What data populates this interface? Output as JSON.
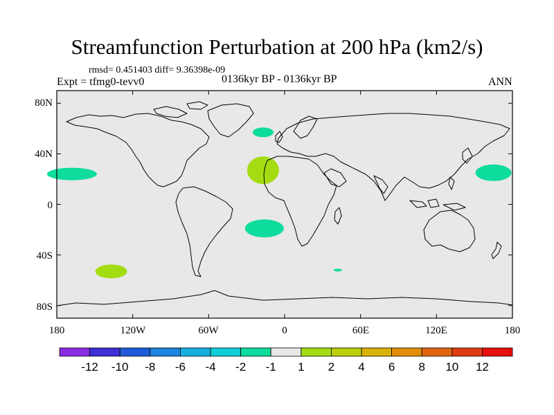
{
  "header": {
    "title": "Streamfunction Perturbation at 200 hPa (km2/s)",
    "stats": "rmsd= 0.451403 diff= 9.36398e-09",
    "experiment": "Expt = tfmg0-tevv0",
    "period": "0136kyr BP - 0136kyr BP",
    "season": "ANN"
  },
  "axes": {
    "y_ticks": [
      "80N",
      "40N",
      "0",
      "40S",
      "80S"
    ],
    "x_ticks": [
      "180",
      "120W",
      "60W",
      "0",
      "60E",
      "120E",
      "180"
    ]
  },
  "colorbar": {
    "colors": [
      "#8a2be2",
      "#3f2fd6",
      "#1f5ad8",
      "#1d84e0",
      "#17aee0",
      "#12ccd8",
      "#0ddc9c",
      "#e8e8e8",
      "#a4dc12",
      "#bccf0a",
      "#d9b20a",
      "#e28f07",
      "#e06410",
      "#e03a12",
      "#e80e0e"
    ],
    "labels": [
      "-12",
      "-10",
      "-8",
      "-6",
      "-4",
      "-2",
      "-1",
      "1",
      "2",
      "4",
      "6",
      "8",
      "10",
      "12"
    ]
  },
  "map": {
    "background_color": "#e8e8e8",
    "features": [
      {
        "name": "north-atlantic-negative",
        "lon": -17,
        "lat": 57,
        "value": "-1 to -2",
        "color": "#0ddc9c"
      },
      {
        "name": "east-atlantic-positive",
        "lon": -17,
        "lat": 27,
        "value": "1 to 2",
        "color": "#a4dc12"
      },
      {
        "name": "south-atlantic-negative",
        "lon": -16,
        "lat": -19,
        "value": "-1 to -2",
        "color": "#0ddc9c"
      },
      {
        "name": "north-pacific-east-negative",
        "lon": -168,
        "lat": 24,
        "value": "-1 to -2",
        "color": "#0ddc9c"
      },
      {
        "name": "north-pacific-west-negative",
        "lon": 165,
        "lat": 25,
        "value": "-1 to -2",
        "color": "#0ddc9c"
      },
      {
        "name": "south-pacific-positive",
        "lon": -137,
        "lat": -53,
        "value": "1 to 2",
        "color": "#a4dc12"
      },
      {
        "name": "south-indian-small-negative",
        "lon": 42,
        "lat": -52,
        "value": "-1 to -2",
        "color": "#0ddc9c"
      }
    ]
  }
}
